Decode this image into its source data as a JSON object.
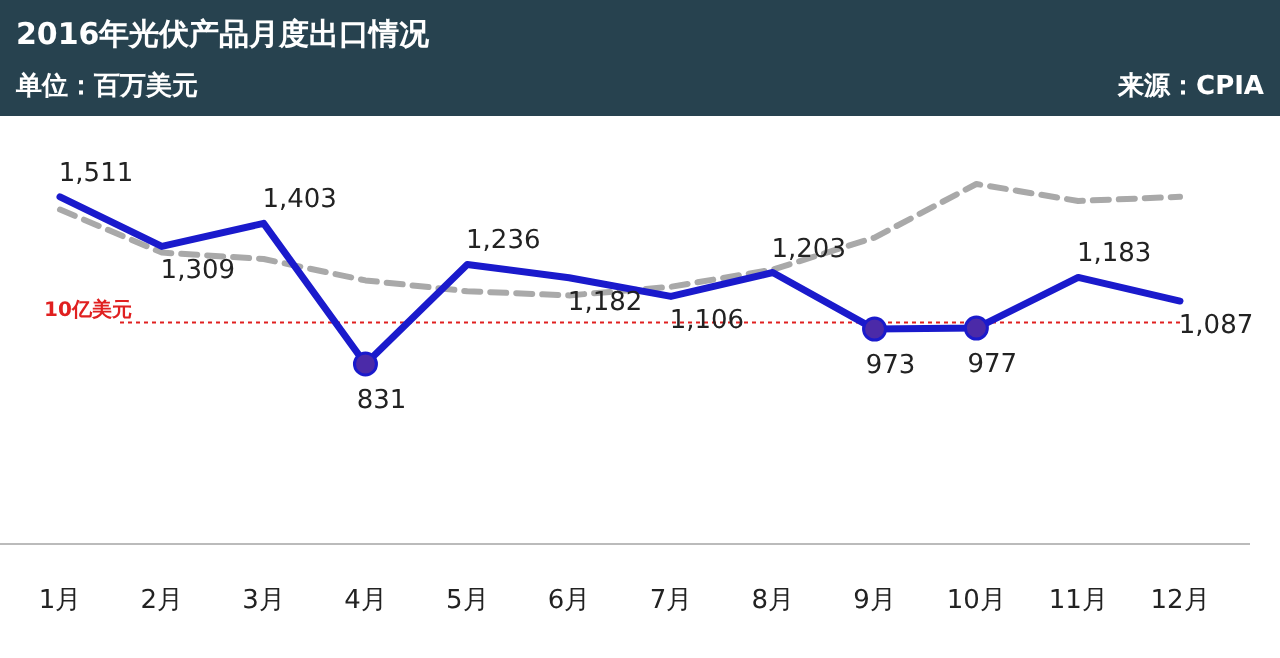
{
  "chart_data": {
    "type": "line",
    "title": "2016年光伏产品月度出口情况",
    "subtitle": "单位：百万美元",
    "annotations": [
      "来源：CPIA"
    ],
    "categories": [
      "1月",
      "2月",
      "3月",
      "4月",
      "5月",
      "6月",
      "7月",
      "8月",
      "9月",
      "10月",
      "11月",
      "12月"
    ],
    "series": [
      {
        "color": "#a9a9a9",
        "line_style": "dashed",
        "values": [
          1459,
          1284,
          1258,
          1171,
          1127,
          1110,
          1145,
          1215,
          1345,
          1563,
          1494,
          1511
        ]
      },
      {
        "color": "#1a1acc",
        "line_style": "solid",
        "values": [
          1511,
          1309,
          1403,
          831,
          1236,
          1182,
          1106,
          1203,
          973,
          977,
          1183,
          1087
        ],
        "value_labels": [
          "1,511",
          "1,309",
          "1,403",
          "831",
          "1,236",
          "1,182",
          "1,106",
          "1,203",
          "973",
          "977",
          "1,183",
          "1,087"
        ]
      },
      {
        "type": "scatter",
        "color": "#4b2aa8",
        "marker": "circle",
        "x": [
          "4月",
          "9月",
          "10月"
        ],
        "values": [
          831,
          973,
          977
        ]
      }
    ],
    "ref_lines": [
      {
        "axis": "y",
        "value": 1000,
        "label": "10亿美元",
        "color": "#e02020",
        "line_style": "dotted"
      }
    ]
  }
}
